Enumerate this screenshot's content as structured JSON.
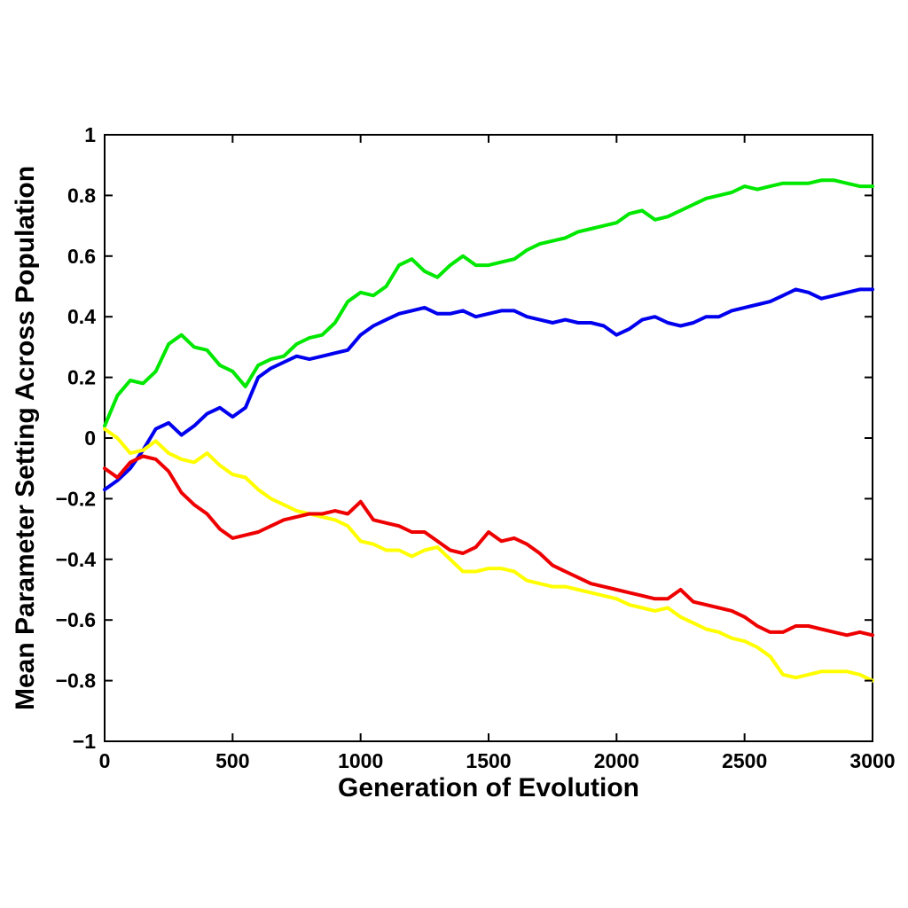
{
  "chart_data": {
    "type": "line",
    "title": "",
    "xlabel": "Generation of Evolution",
    "ylabel": "Mean Parameter Setting Across Population",
    "xlim": [
      0,
      3000
    ],
    "ylim": [
      -1,
      1
    ],
    "xticks": [
      0,
      500,
      1000,
      1500,
      2000,
      2500,
      3000
    ],
    "xtick_labels": [
      "0",
      "500",
      "1000",
      "1500",
      "2000",
      "2500",
      "3000"
    ],
    "yticks": [
      -1,
      -0.8,
      -0.6,
      -0.4,
      -0.2,
      0,
      0.2,
      0.4,
      0.6,
      0.8,
      1
    ],
    "ytick_labels": [
      "−1",
      "−0.8",
      "−0.6",
      "−0.4",
      "−0.2",
      "0",
      "0.2",
      "0.4",
      "0.6",
      "0.8",
      "1"
    ],
    "grid": false,
    "legend": "none",
    "x": [
      0,
      50,
      100,
      150,
      200,
      250,
      300,
      350,
      400,
      450,
      500,
      550,
      600,
      650,
      700,
      750,
      800,
      850,
      900,
      950,
      1000,
      1050,
      1100,
      1150,
      1200,
      1250,
      1300,
      1350,
      1400,
      1450,
      1500,
      1550,
      1600,
      1650,
      1700,
      1750,
      1800,
      1850,
      1900,
      1950,
      2000,
      2050,
      2100,
      2150,
      2200,
      2250,
      2300,
      2350,
      2400,
      2450,
      2500,
      2550,
      2600,
      2650,
      2700,
      2750,
      2800,
      2850,
      2900,
      2950,
      3000
    ],
    "series": [
      {
        "color": "#00e800",
        "values": [
          0.04,
          0.14,
          0.19,
          0.18,
          0.22,
          0.31,
          0.34,
          0.3,
          0.29,
          0.24,
          0.22,
          0.17,
          0.24,
          0.26,
          0.27,
          0.31,
          0.33,
          0.34,
          0.38,
          0.45,
          0.48,
          0.47,
          0.5,
          0.57,
          0.59,
          0.55,
          0.53,
          0.57,
          0.6,
          0.57,
          0.57,
          0.58,
          0.59,
          0.62,
          0.64,
          0.65,
          0.66,
          0.68,
          0.69,
          0.7,
          0.71,
          0.74,
          0.75,
          0.72,
          0.73,
          0.75,
          0.77,
          0.79,
          0.8,
          0.81,
          0.83,
          0.82,
          0.83,
          0.84,
          0.84,
          0.84,
          0.85,
          0.85,
          0.84,
          0.83,
          0.83
        ]
      },
      {
        "color": "#0000ee",
        "values": [
          -0.17,
          -0.14,
          -0.1,
          -0.04,
          0.03,
          0.05,
          0.01,
          0.04,
          0.08,
          0.1,
          0.07,
          0.1,
          0.2,
          0.23,
          0.25,
          0.27,
          0.26,
          0.27,
          0.28,
          0.29,
          0.34,
          0.37,
          0.39,
          0.41,
          0.42,
          0.43,
          0.41,
          0.41,
          0.42,
          0.4,
          0.41,
          0.42,
          0.42,
          0.4,
          0.39,
          0.38,
          0.39,
          0.38,
          0.38,
          0.37,
          0.34,
          0.36,
          0.39,
          0.4,
          0.38,
          0.37,
          0.38,
          0.4,
          0.4,
          0.42,
          0.43,
          0.44,
          0.45,
          0.47,
          0.49,
          0.48,
          0.46,
          0.47,
          0.48,
          0.49,
          0.49
        ]
      },
      {
        "color": "#ffff00",
        "values": [
          0.03,
          0.0,
          -0.05,
          -0.04,
          -0.01,
          -0.05,
          -0.07,
          -0.08,
          -0.05,
          -0.09,
          -0.12,
          -0.13,
          -0.17,
          -0.2,
          -0.22,
          -0.24,
          -0.25,
          -0.26,
          -0.27,
          -0.29,
          -0.34,
          -0.35,
          -0.37,
          -0.37,
          -0.39,
          -0.37,
          -0.36,
          -0.4,
          -0.44,
          -0.44,
          -0.43,
          -0.43,
          -0.44,
          -0.47,
          -0.48,
          -0.49,
          -0.49,
          -0.5,
          -0.51,
          -0.52,
          -0.53,
          -0.55,
          -0.56,
          -0.57,
          -0.56,
          -0.59,
          -0.61,
          -0.63,
          -0.64,
          -0.66,
          -0.67,
          -0.69,
          -0.72,
          -0.78,
          -0.79,
          -0.78,
          -0.77,
          -0.77,
          -0.77,
          -0.78,
          -0.8
        ]
      },
      {
        "color": "#ee0000",
        "values": [
          -0.1,
          -0.13,
          -0.08,
          -0.06,
          -0.07,
          -0.11,
          -0.18,
          -0.22,
          -0.25,
          -0.3,
          -0.33,
          -0.32,
          -0.31,
          -0.29,
          -0.27,
          -0.26,
          -0.25,
          -0.25,
          -0.24,
          -0.25,
          -0.21,
          -0.27,
          -0.28,
          -0.29,
          -0.31,
          -0.31,
          -0.34,
          -0.37,
          -0.38,
          -0.36,
          -0.31,
          -0.34,
          -0.33,
          -0.35,
          -0.38,
          -0.42,
          -0.44,
          -0.46,
          -0.48,
          -0.49,
          -0.5,
          -0.51,
          -0.52,
          -0.53,
          -0.53,
          -0.5,
          -0.54,
          -0.55,
          -0.56,
          -0.57,
          -0.59,
          -0.62,
          -0.64,
          -0.64,
          -0.62,
          -0.62,
          -0.63,
          -0.64,
          -0.65,
          -0.64,
          -0.65
        ]
      }
    ]
  }
}
